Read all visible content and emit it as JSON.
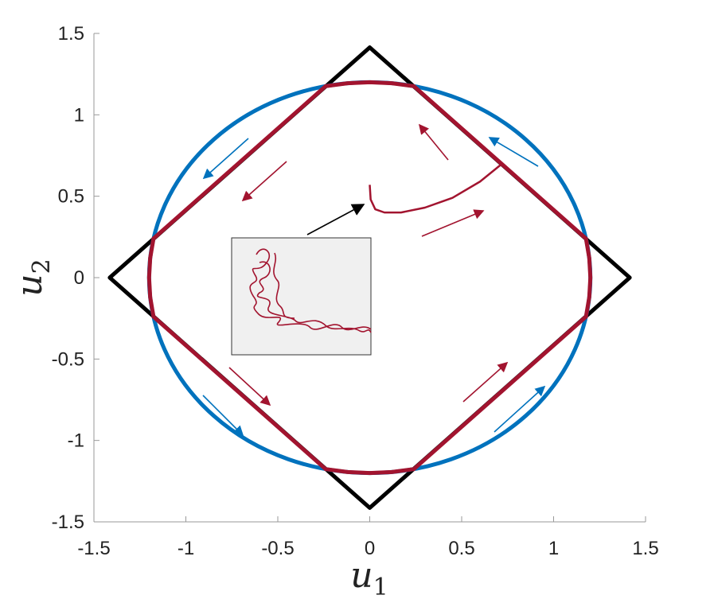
{
  "chart_data": {
    "type": "shapes",
    "xlim": [
      -1.5,
      1.5
    ],
    "ylim": [
      -1.5,
      1.5
    ],
    "xticks": [
      -1.5,
      -1,
      -0.5,
      0,
      0.5,
      1,
      1.5
    ],
    "yticks": [
      -1.5,
      -1,
      -0.5,
      0,
      0.5,
      1,
      1.5
    ],
    "xlabel": {
      "base": "u",
      "sub": "1"
    },
    "ylabel": {
      "base": "u",
      "sub": "2"
    },
    "shapes": [
      {
        "kind": "polygon",
        "color": "#000000",
        "x": [
          0,
          1.414,
          0,
          -1.414
        ],
        "y": [
          1.414,
          0,
          -1.414,
          0
        ]
      },
      {
        "kind": "circle",
        "color": "#0072bd",
        "cx": 0,
        "cy": 0,
        "r": 1.2
      },
      {
        "kind": "polygon",
        "color": "#a2142f",
        "x": [
          0.24,
          0.12,
          0,
          -0.12,
          -0.24,
          -1.176,
          -1.194,
          -1.2,
          -1.194,
          -1.176,
          -0.24,
          -0.12,
          0,
          0.12,
          0.24,
          1.176,
          1.194,
          1.2,
          1.194,
          1.176
        ],
        "y": [
          1.176,
          1.194,
          1.2,
          1.194,
          1.176,
          0.24,
          0.12,
          0,
          -0.12,
          -0.24,
          -1.176,
          -1.194,
          -1.2,
          -1.194,
          -1.176,
          -0.24,
          -0.12,
          0,
          0.12,
          0.24
        ]
      },
      {
        "kind": "line",
        "color": "#a2142f",
        "x": [
          0,
          0.005,
          0.03,
          0.08,
          0.17,
          0.3,
          0.45,
          0.6,
          0.72
        ],
        "y": [
          0.57,
          0.48,
          0.42,
          0.4,
          0.4,
          0.43,
          0.49,
          0.59,
          0.7
        ]
      }
    ]
  }
}
